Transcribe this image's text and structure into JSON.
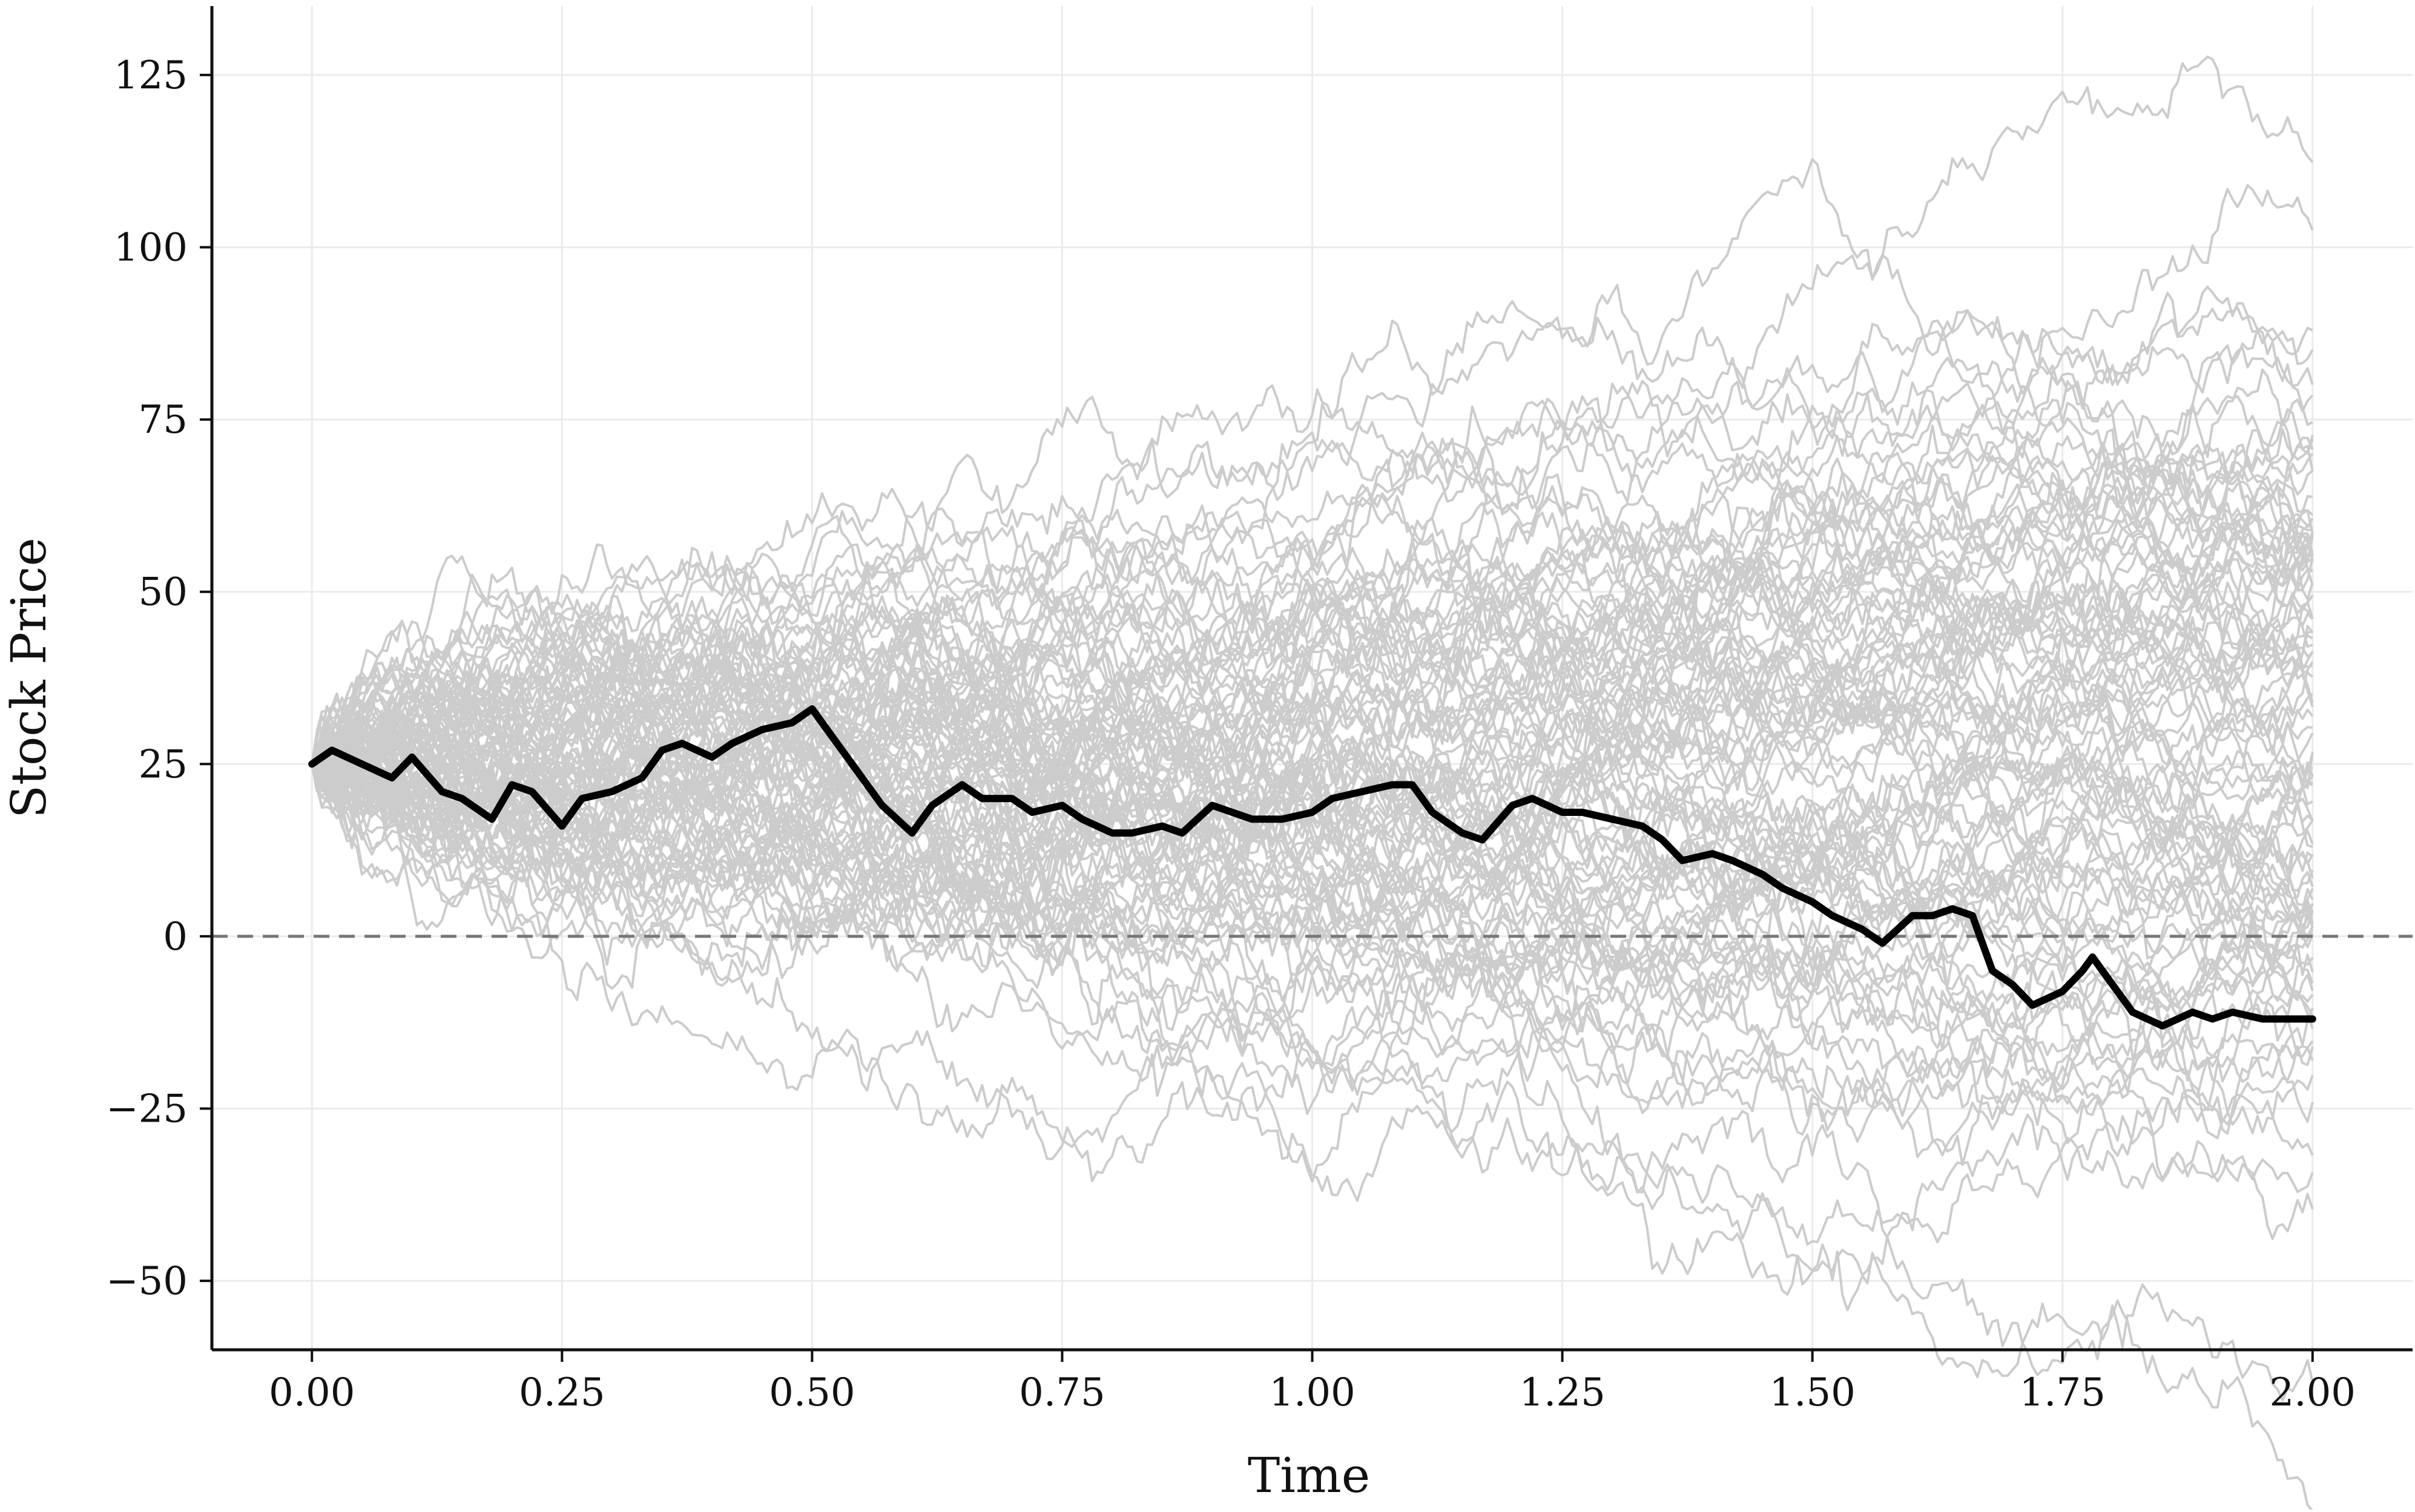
{
  "chart_data": {
    "type": "line",
    "title": "",
    "xlabel": "Time",
    "ylabel": "Stock Price",
    "xlim": [
      -0.1,
      2.1
    ],
    "ylim": [
      -60,
      135
    ],
    "x_ticks": [
      0.0,
      0.25,
      0.5,
      0.75,
      1.0,
      1.25,
      1.5,
      1.75,
      2.0
    ],
    "x_tick_labels": [
      "0.00",
      "0.25",
      "0.50",
      "0.75",
      "1.00",
      "1.25",
      "1.50",
      "1.75",
      "2.00"
    ],
    "y_ticks": [
      -50,
      -25,
      0,
      25,
      50,
      75,
      100,
      125
    ],
    "y_tick_labels": [
      "−50",
      "−25",
      "0",
      "25",
      "50",
      "75",
      "100",
      "125"
    ],
    "grid": true,
    "legend": "none",
    "reference_line": {
      "y": 0,
      "style": "dashed",
      "color": "#777777"
    },
    "simulated_paths": {
      "count": 100,
      "color": "#cccccc",
      "start_value": 25,
      "end_range": [
        -51,
        122
      ]
    },
    "series": [
      {
        "color": "#000000",
        "x": [
          0.0,
          0.02,
          0.05,
          0.08,
          0.1,
          0.13,
          0.15,
          0.18,
          0.2,
          0.22,
          0.25,
          0.27,
          0.3,
          0.33,
          0.35,
          0.37,
          0.4,
          0.42,
          0.45,
          0.48,
          0.5,
          0.52,
          0.55,
          0.57,
          0.6,
          0.62,
          0.65,
          0.67,
          0.7,
          0.72,
          0.75,
          0.77,
          0.8,
          0.82,
          0.85,
          0.87,
          0.9,
          0.92,
          0.94,
          0.97,
          1.0,
          1.02,
          1.05,
          1.08,
          1.1,
          1.12,
          1.15,
          1.17,
          1.2,
          1.22,
          1.25,
          1.27,
          1.3,
          1.33,
          1.35,
          1.37,
          1.4,
          1.42,
          1.45,
          1.47,
          1.5,
          1.52,
          1.55,
          1.57,
          1.6,
          1.62,
          1.64,
          1.66,
          1.68,
          1.7,
          1.72,
          1.75,
          1.77,
          1.78,
          1.8,
          1.82,
          1.85,
          1.88,
          1.9,
          1.92,
          1.95,
          1.97,
          2.0
        ],
        "values": [
          25,
          27,
          25,
          23,
          26,
          21,
          20,
          17,
          22,
          21,
          16,
          20,
          21,
          23,
          27,
          28,
          26,
          28,
          30,
          31,
          33,
          29,
          23,
          19,
          15,
          19,
          22,
          20,
          20,
          18,
          19,
          17,
          15,
          15,
          16,
          15,
          19,
          18,
          17,
          17,
          18,
          20,
          21,
          22,
          22,
          18,
          15,
          14,
          19,
          20,
          18,
          18,
          17,
          16,
          14,
          11,
          12,
          11,
          9,
          7,
          5,
          3,
          1,
          -1,
          3,
          3,
          4,
          3,
          -5,
          -7,
          -10,
          -8,
          -5,
          -3,
          -7,
          -11,
          -13,
          -11,
          -12,
          -11,
          -12,
          -12,
          -12
        ]
      }
    ]
  }
}
